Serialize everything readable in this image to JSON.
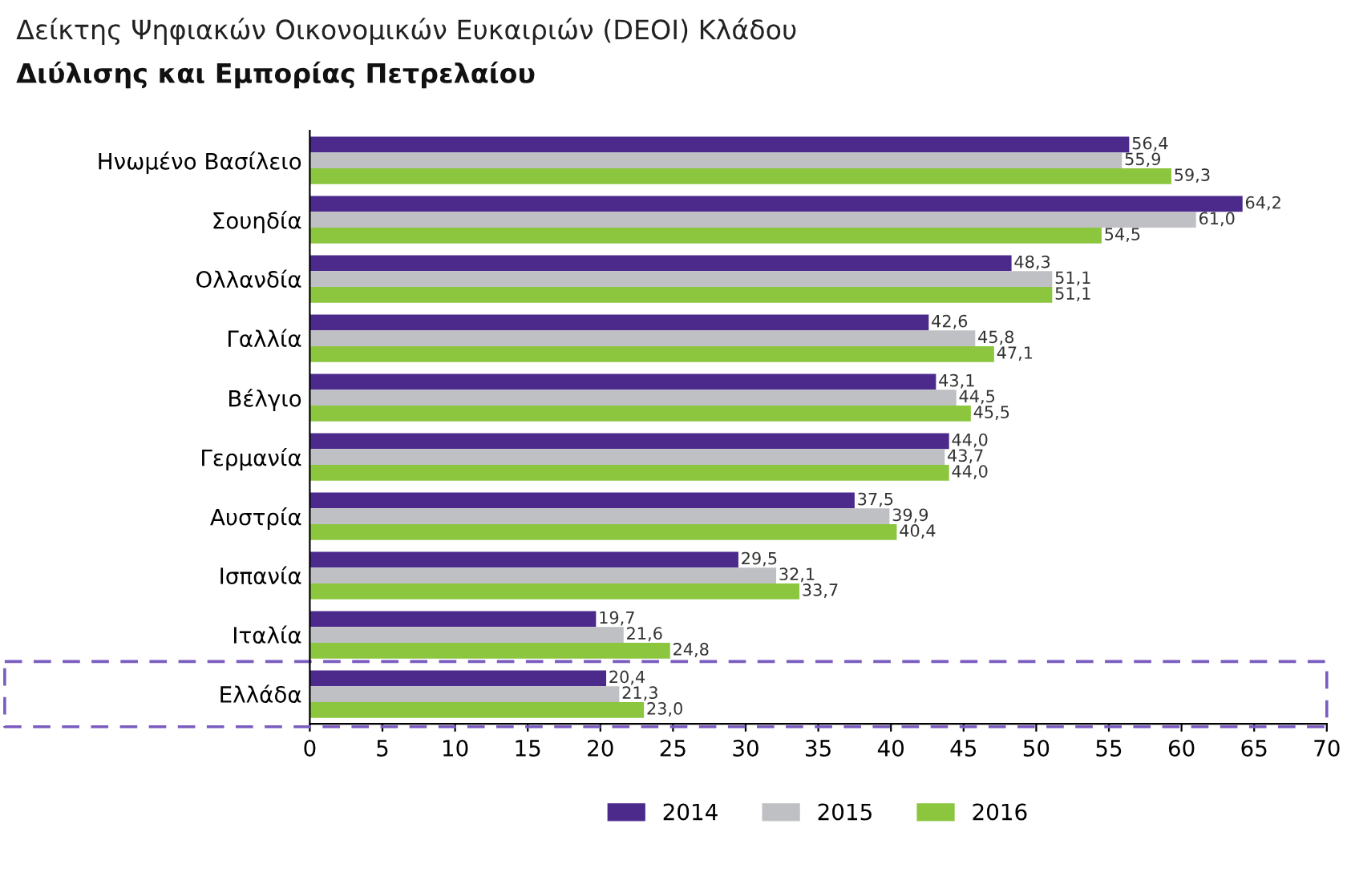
{
  "chart_data": {
    "type": "bar",
    "orientation": "horizontal",
    "title": "Δείκτης Ψηφιακών Οικονομικών Ευκαιριών (DEOI) Κλάδου",
    "subtitle": "Διύλισης και Εμπορίας Πετρελαίου",
    "categories": [
      "Ηνωμένο Βασίλειο",
      "Σουηδία",
      "Ολλανδία",
      "Γαλλία",
      "Βέλγιο",
      "Γερμανία",
      "Αυστρία",
      "Ισπανία",
      "Ιταλία",
      "Ελλάδα"
    ],
    "series": [
      {
        "name": "2014",
        "color": "#4b2a8c",
        "values": [
          56.4,
          64.2,
          48.3,
          42.6,
          43.1,
          44.0,
          37.5,
          29.5,
          19.7,
          20.4
        ],
        "value_labels": [
          "56,4",
          "64,2",
          "48,3",
          "42,6",
          "43,1",
          "44,0",
          "37,5",
          "29,5",
          "19,7",
          "20,4"
        ]
      },
      {
        "name": "2015",
        "color": "#bfc0c4",
        "values": [
          55.9,
          61.0,
          51.1,
          45.8,
          44.5,
          43.7,
          39.9,
          32.1,
          21.6,
          21.3
        ],
        "value_labels": [
          "55,9",
          "61,0",
          "51,1",
          "45,8",
          "44,5",
          "43,7",
          "39,9",
          "32,1",
          "21,6",
          "21,3"
        ]
      },
      {
        "name": "2016",
        "color": "#8cc63f",
        "values": [
          59.3,
          54.5,
          51.1,
          47.1,
          45.5,
          44.0,
          40.4,
          33.7,
          24.8,
          23.0
        ],
        "value_labels": [
          "59,3",
          "54,5",
          "51,1",
          "47,1",
          "45,5",
          "44,0",
          "40,4",
          "33,7",
          "24,8",
          "23,0"
        ]
      }
    ],
    "xlim": [
      0,
      70
    ],
    "xticks": [
      0,
      5,
      10,
      15,
      20,
      25,
      30,
      35,
      40,
      45,
      50,
      55,
      60,
      65,
      70
    ],
    "grid": false,
    "legend": "bottom"
  }
}
